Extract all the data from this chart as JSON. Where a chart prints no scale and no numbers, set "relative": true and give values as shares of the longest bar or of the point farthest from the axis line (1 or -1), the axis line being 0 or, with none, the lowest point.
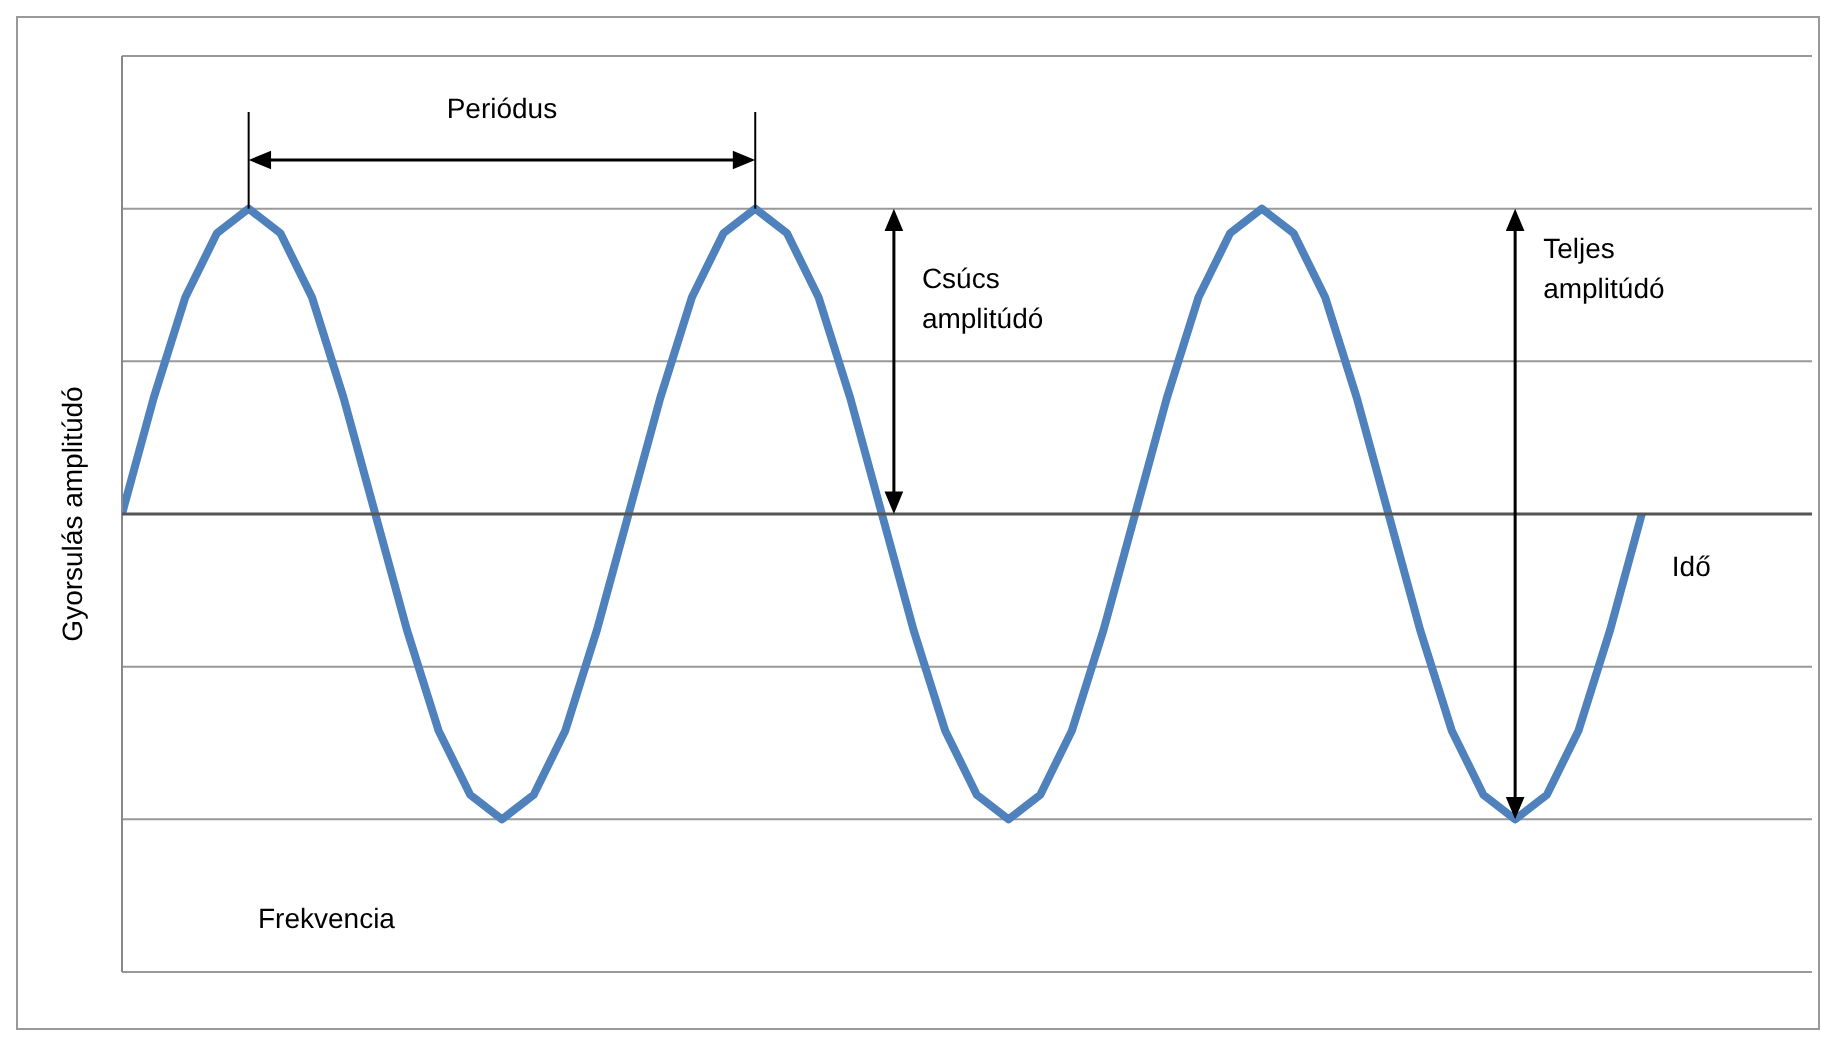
{
  "chart_data": {
    "type": "line",
    "relative": true,
    "ylabel": "Gyorsulás amplitúdó",
    "ref_lines": [
      {
        "axis": "y",
        "value": 1.5,
        "color": "#999999"
      },
      {
        "axis": "y",
        "value": 1,
        "color": "#999999"
      },
      {
        "axis": "y",
        "value": 0.5,
        "color": "#999999"
      },
      {
        "axis": "y",
        "value": -0.5,
        "color": "#999999"
      },
      {
        "axis": "y",
        "value": -1,
        "color": "#999999"
      },
      {
        "axis": "y",
        "value": -1.5,
        "color": "#999999"
      }
    ],
    "marker": "none",
    "categories": [
      null,
      null,
      null,
      null,
      null,
      null,
      null,
      null,
      null,
      null,
      null,
      null,
      null,
      null,
      null,
      null,
      null,
      null,
      null,
      null,
      null,
      null,
      null,
      null,
      null,
      null,
      null,
      null,
      null,
      null,
      null,
      null,
      null,
      null,
      null,
      null,
      null,
      null,
      null,
      null,
      null,
      null,
      null,
      null,
      null,
      null,
      null,
      null,
      null
    ],
    "series": [
      {
        "color": "#4f81bd",
        "values": [
          0,
          0.38,
          0.71,
          0.92,
          1,
          0.92,
          0.71,
          0.38,
          0,
          -0.38,
          -0.71,
          -0.92,
          -1,
          -0.92,
          -0.71,
          -0.38,
          0,
          0.38,
          0.71,
          0.92,
          1,
          0.92,
          0.71,
          0.38,
          0,
          -0.38,
          -0.71,
          -0.92,
          -1,
          -0.92,
          -0.71,
          -0.38,
          0,
          0.38,
          0.71,
          0.92,
          1,
          0.92,
          0.71,
          0.38,
          0,
          -0.38,
          -0.71,
          -0.92,
          -1,
          -0.92,
          -0.71,
          -0.38,
          0
        ]
      }
    ],
    "annotations": [
      "Periódus",
      "Csúcs amplitúdó",
      "Teljes amplitúdó",
      "Idő",
      "Frekvencia"
    ]
  }
}
